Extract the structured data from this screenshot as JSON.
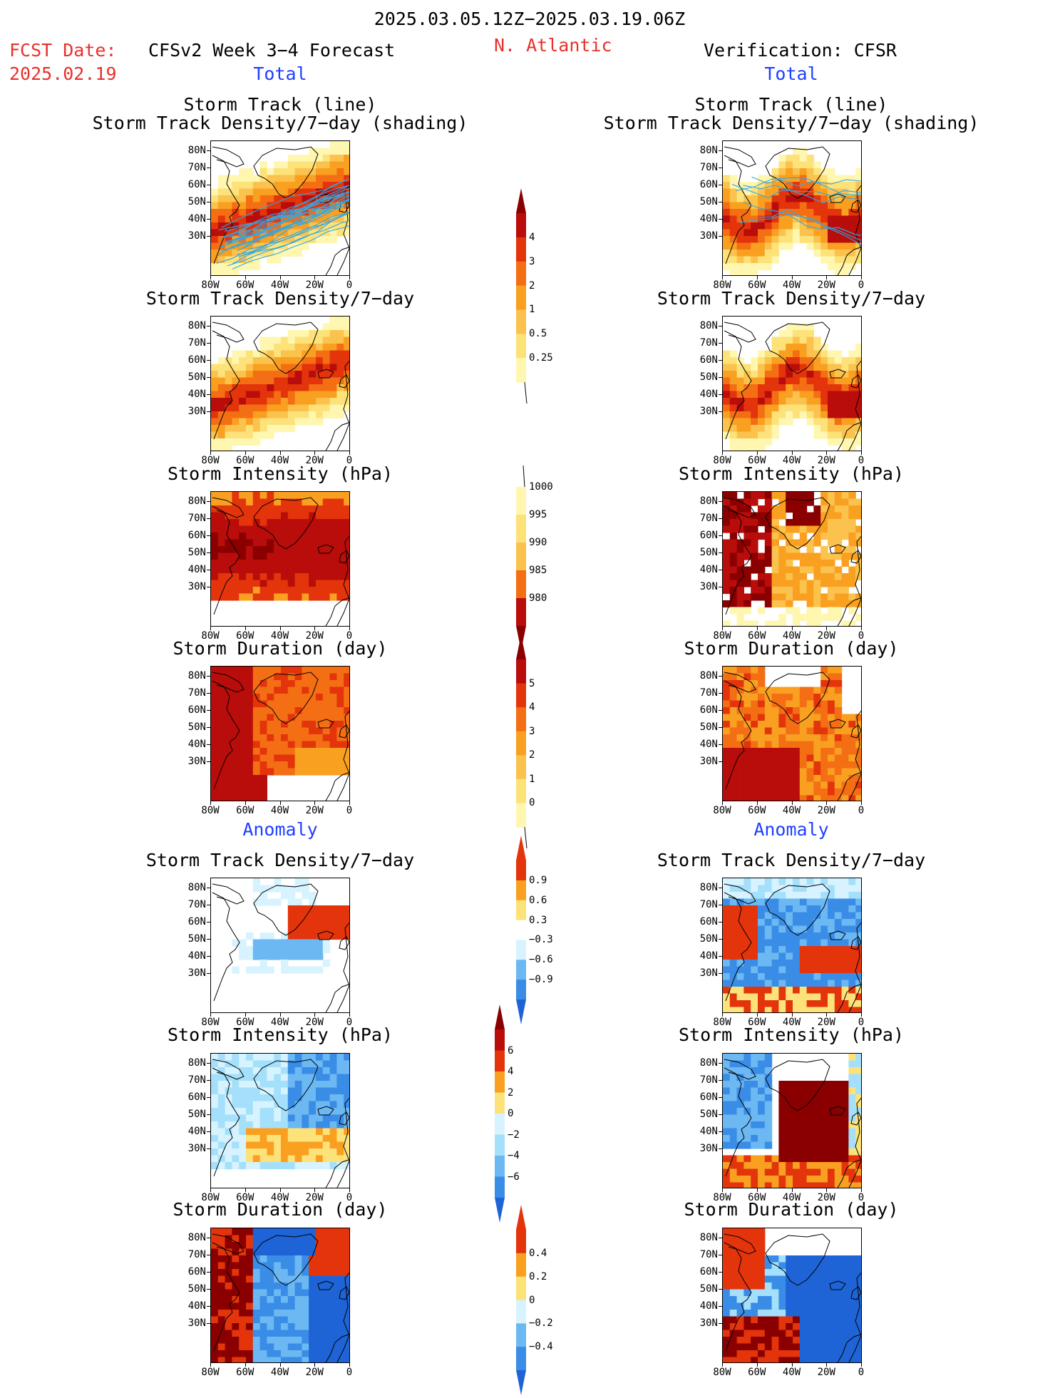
{
  "header": {
    "period": "2025.03.05.12Z−2025.03.19.06Z",
    "fcst_label": "FCST Date:",
    "fcst_date": "2025.02.19",
    "left_title": "CFSv2 Week 3−4 Forecast",
    "region": "N. Atlantic",
    "right_title": "Verification: CFSR"
  },
  "sections": {
    "total": "Total",
    "anomaly": "Anomaly"
  },
  "panel_titles": {
    "track_line": "Storm Track (line)",
    "track_density_shading": "Storm Track Density/7−day (shading)",
    "track_density": "Storm Track Density/7−day",
    "intensity": "Storm Intensity (hPa)",
    "duration": "Storm Duration (day)"
  },
  "axes": {
    "lat_labels": [
      "80N",
      "70N",
      "60N",
      "50N",
      "40N",
      "30N"
    ],
    "lon_labels": [
      "80W",
      "60W",
      "40W",
      "20W",
      "0"
    ]
  },
  "colorbars": {
    "density_total": [
      "4",
      "3",
      "2",
      "1",
      "0.5",
      "0.25"
    ],
    "intensity_total": [
      "1000",
      "995",
      "990",
      "985",
      "980"
    ],
    "duration_total": [
      "5",
      "4",
      "3",
      "2",
      "1",
      "0"
    ],
    "density_anom": [
      "0.9",
      "0.6",
      "0.3",
      "−0.3",
      "−0.6",
      "−0.9"
    ],
    "intensity_anom": [
      "6",
      "4",
      "2",
      "0",
      "−2",
      "−4",
      "−6"
    ],
    "duration_anom": [
      "0.4",
      "0.2",
      "0",
      "−0.2",
      "−0.4"
    ]
  },
  "colors": {
    "warm": [
      "#fff6b0",
      "#fde27a",
      "#fbc24d",
      "#f9a021",
      "#f46e14",
      "#e3340c",
      "#b80d0a",
      "#8a0000"
    ],
    "cool": [
      "#d6f3ff",
      "#a4e0fb",
      "#6cb8f2",
      "#3a8de6",
      "#1f64d6"
    ],
    "track": "#2fa8e8",
    "title_red": "#e8312b",
    "title_blue": "#1f3fff"
  }
}
